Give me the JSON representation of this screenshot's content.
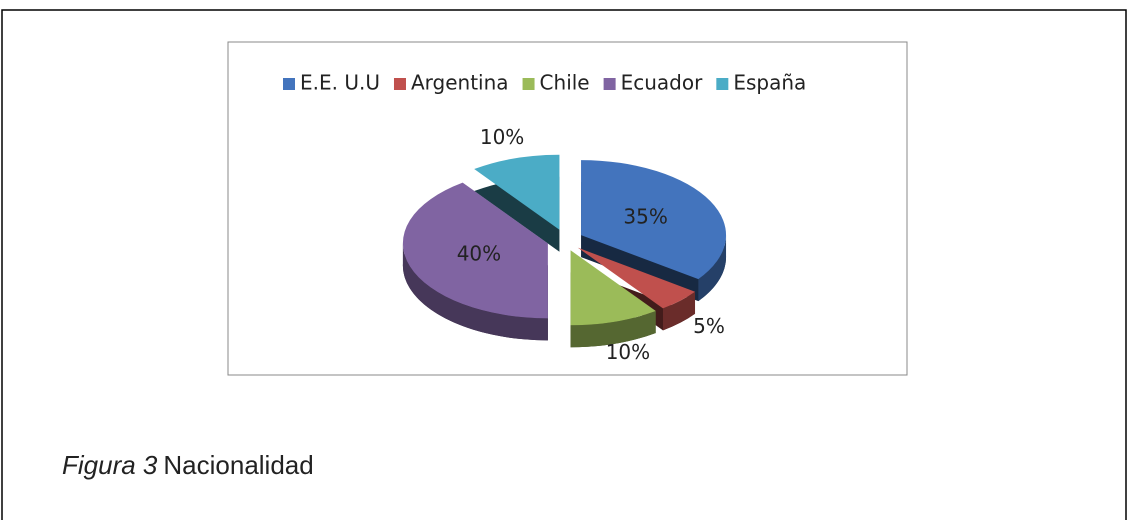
{
  "chart_data": {
    "type": "pie",
    "categories": [
      "E.E. U.U",
      "Argentina",
      "Chile",
      "Ecuador",
      "España"
    ],
    "values": [
      35,
      5,
      10,
      40,
      10
    ],
    "value_labels": [
      "35%",
      "5%",
      "10%",
      "40%",
      "10%"
    ],
    "colors": [
      "#4374bd",
      "#c0504d",
      "#9bbb59",
      "#8064a2",
      "#4bacc6"
    ],
    "legend": "top"
  },
  "caption": {
    "label": "Figura 3",
    "text": "Nacionalidad"
  }
}
